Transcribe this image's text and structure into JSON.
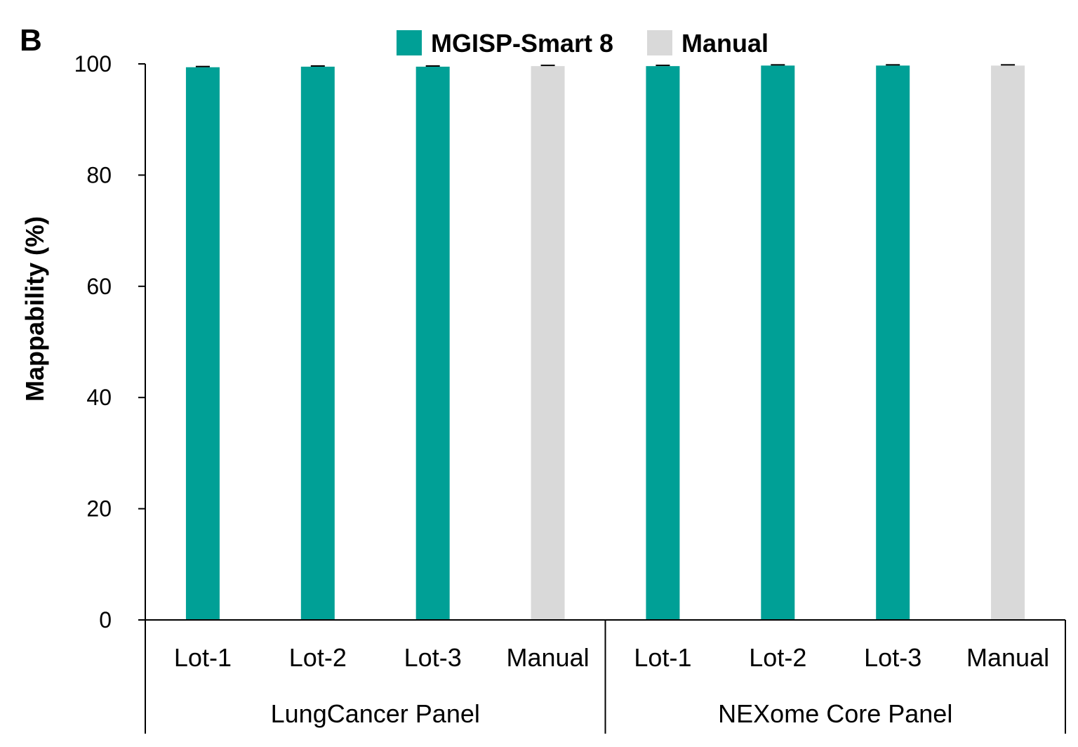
{
  "panel_label": "B",
  "chart_data": {
    "type": "bar",
    "title": "",
    "xlabel": "",
    "ylabel": "Mappability (%)",
    "ylim": [
      0,
      100
    ],
    "yticks": [
      0,
      20,
      40,
      60,
      80,
      100
    ],
    "grid": false,
    "legend_position": "top-center",
    "legend": [
      {
        "name": "MGISP-Smart 8",
        "color": "#00A096"
      },
      {
        "name": "Manual",
        "color": "#D9D9D9"
      }
    ],
    "groups": [
      {
        "name": "LungCancer Panel",
        "categories": [
          "Lot-1",
          "Lot-2",
          "Lot-3",
          "Manual"
        ],
        "values": [
          99.4,
          99.5,
          99.5,
          99.6
        ],
        "series": [
          "MGISP-Smart 8",
          "MGISP-Smart 8",
          "MGISP-Smart 8",
          "Manual"
        ]
      },
      {
        "name": "NEXome Core Panel",
        "categories": [
          "Lot-1",
          "Lot-2",
          "Lot-3",
          "Manual"
        ],
        "values": [
          99.6,
          99.7,
          99.7,
          99.7
        ],
        "series": [
          "MGISP-Smart 8",
          "MGISP-Smart 8",
          "MGISP-Smart 8",
          "Manual"
        ]
      }
    ]
  }
}
